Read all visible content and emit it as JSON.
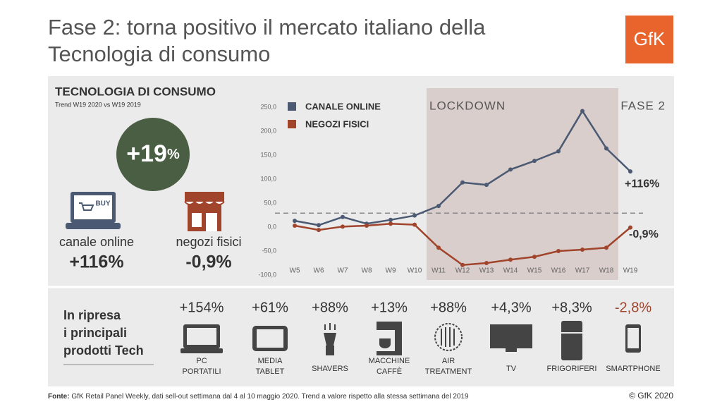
{
  "header": {
    "title_lines": [
      "Fase 2: torna positivo il mercato italiano della",
      "Tecnologia di consumo"
    ],
    "logo": "GfK"
  },
  "summary": {
    "title": "TECNOLOGIA DI CONSUMO",
    "subtitle": "Trend W19 2020 vs W19 2019",
    "total": "+19",
    "total_unit": "%",
    "total_color": "#4a5e44",
    "channels": [
      {
        "label": "canale online",
        "value": "+116%",
        "icon_text": "BUY"
      },
      {
        "label": "negozi fisici",
        "value": "-0,9%"
      }
    ]
  },
  "chart_data": {
    "type": "line",
    "categories": [
      "W5",
      "W6",
      "W7",
      "W8",
      "W9",
      "W10",
      "W11",
      "W12",
      "W13",
      "W14",
      "W15",
      "W16",
      "W17",
      "W18",
      "W19"
    ],
    "series": [
      {
        "name": "CANALE ONLINE",
        "color": "#4b5a72",
        "values": [
          13,
          4,
          21,
          7,
          15,
          24,
          44,
          93,
          88,
          120,
          138,
          158,
          242,
          164,
          116
        ],
        "end_label": "+116%"
      },
      {
        "name": "NEGOZI FISICI",
        "color": "#a0442c",
        "values": [
          3,
          -6,
          1,
          3,
          7,
          5,
          -43,
          -79,
          -75,
          -68,
          -62,
          -50,
          -47,
          -43,
          -0.9
        ],
        "end_label": "-0,9%"
      }
    ],
    "ylim": [
      -100,
      250
    ],
    "yticks": [
      {
        "value": 250,
        "label": "250,0"
      },
      {
        "value": 200,
        "label": "200,0"
      },
      {
        "value": 150,
        "label": "150,0"
      },
      {
        "value": 100,
        "label": "100,0"
      },
      {
        "value": 50,
        "label": "50,0"
      },
      {
        "value": 0,
        "label": "0,0"
      },
      {
        "value": -50,
        "label": "-50,0"
      },
      {
        "value": -100,
        "label": "-100,0"
      }
    ],
    "reference_line": 29,
    "regions": [
      {
        "from": "W10",
        "to": "W18",
        "label": "LOCKDOWN",
        "color": "#d9cecb"
      },
      {
        "from": "W18",
        "to": "W19",
        "label": "FASE 2"
      }
    ]
  },
  "products": {
    "heading_lines": [
      "In ripresa",
      "i principali",
      "prodotti Tech"
    ],
    "items": [
      {
        "value": "+154%",
        "label_lines": [
          "PC",
          "PORTATILI"
        ],
        "color": "#333333"
      },
      {
        "value": "+61%",
        "label_lines": [
          "MEDIA",
          "TABLET"
        ],
        "color": "#333333"
      },
      {
        "value": "+88%",
        "label_lines": [
          "SHAVERS"
        ],
        "color": "#333333"
      },
      {
        "value": "+13%",
        "label_lines": [
          "MACCHINE",
          "CAFFÈ"
        ],
        "color": "#333333"
      },
      {
        "value": "+88%",
        "label_lines": [
          "AIR",
          "TREATMENT"
        ],
        "color": "#333333"
      },
      {
        "value": "+4,3%",
        "label_lines": [
          "TV"
        ],
        "color": "#333333"
      },
      {
        "value": "+8,3%",
        "label_lines": [
          "FRIGORIFERI"
        ],
        "color": "#333333"
      },
      {
        "value": "-2,8%",
        "label_lines": [
          "SMARTPHONE"
        ],
        "color": "#a0442c"
      }
    ]
  },
  "footer": {
    "source_label": "Fonte:",
    "source": " GfK Retail Panel Weekly, dati sell-out settimana dal 4 al 10 maggio 2020. Trend a valore rispetto alla stessa settimana del 2019",
    "copyright": "© GfK 2020"
  }
}
